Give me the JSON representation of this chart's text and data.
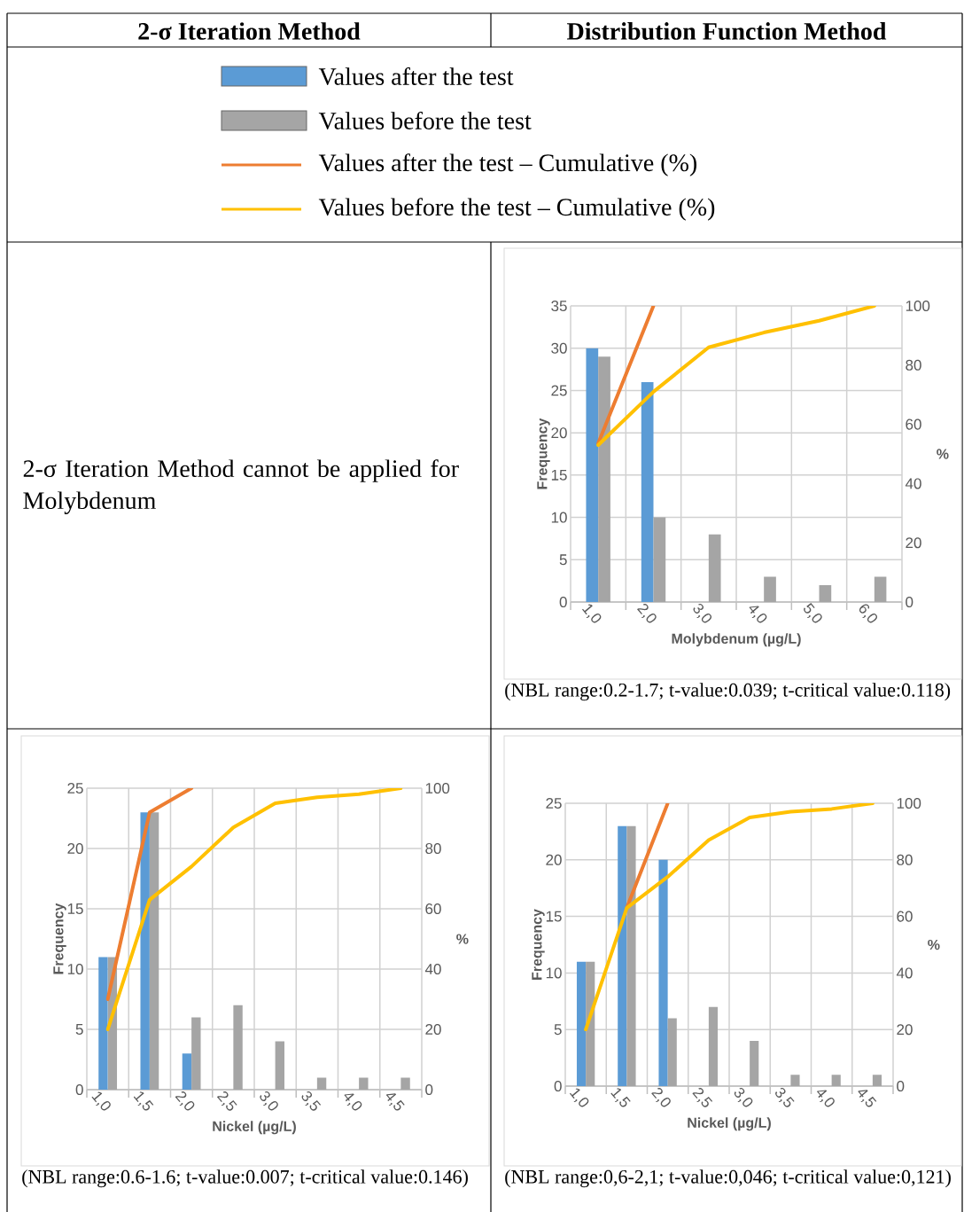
{
  "chart_data": [
    {
      "type": "other",
      "title": "2-σ Iteration Method",
      "annotations": [
        "2-σ Iteration Method cannot be applied for Molybdenum"
      ]
    },
    {
      "type": "bar",
      "title": "Distribution Function Method",
      "xlabel": "Molybdenum (µg/L)",
      "ylabel": "Frequency",
      "y2label": "%",
      "categories": [
        "1,0",
        "2,0",
        "3,0",
        "4,0",
        "5,0",
        "6,0"
      ],
      "series": [
        {
          "name": "Values after the test",
          "color": "#5b9bd5",
          "values": [
            30,
            26,
            0,
            0,
            0,
            0
          ]
        },
        {
          "name": "Values before the test",
          "color": "#a5a5a5",
          "values": [
            29,
            10,
            8,
            3,
            2,
            3
          ]
        },
        {
          "name": "Values after the test – Cumulative (%)",
          "type": "line",
          "axis": "y2",
          "color": "#ed7d31",
          "values": [
            53.6,
            100,
            null,
            null,
            null,
            null
          ]
        },
        {
          "name": "Values before the test – Cumulative (%)",
          "type": "line",
          "axis": "y2",
          "color": "#ffc000",
          "values": [
            53,
            71,
            86,
            91,
            95,
            100
          ]
        }
      ],
      "ylim": [
        0,
        35
      ],
      "yticks": [
        0,
        5,
        10,
        15,
        20,
        25,
        30,
        35
      ],
      "y2lim": [
        0,
        100
      ],
      "y2ticks": [
        0,
        20,
        40,
        60,
        80,
        100
      ],
      "grid": true,
      "legend": "top",
      "annotations": [
        "(NBL range:0.2-1.7; t-value:0.039; t-critical value:0.118)"
      ]
    },
    {
      "type": "bar",
      "xlabel": "Nickel (µg/L)",
      "ylabel": "Frequency",
      "y2label": "%",
      "categories": [
        "1,0",
        "1,5",
        "2,0",
        "2,5",
        "3,0",
        "3,5",
        "4,0",
        "4,5"
      ],
      "series": [
        {
          "color": "#5b9bd5",
          "values": [
            11,
            23,
            3,
            0,
            0,
            0,
            0,
            0
          ]
        },
        {
          "color": "#a5a5a5",
          "values": [
            11,
            23,
            6,
            7,
            4,
            1,
            1,
            1
          ]
        },
        {
          "type": "line",
          "axis": "y2",
          "color": "#ed7d31",
          "values": [
            30,
            92,
            100,
            null,
            null,
            null,
            null,
            null
          ]
        },
        {
          "type": "line",
          "axis": "y2",
          "color": "#ffc000",
          "values": [
            20,
            63,
            74,
            87,
            95,
            97,
            98,
            100
          ]
        }
      ],
      "ylim": [
        0,
        25
      ],
      "yticks": [
        0,
        5,
        10,
        15,
        20,
        25
      ],
      "y2lim": [
        0,
        100
      ],
      "y2ticks": [
        0,
        20,
        40,
        60,
        80,
        100
      ],
      "grid": true,
      "annotations": [
        "(NBL range:0.6-1.6; t-value:0.007; t-critical value:0.146)"
      ]
    },
    {
      "type": "bar",
      "xlabel": "Nickel (µg/L)",
      "ylabel": "Frequency",
      "y2label": "%",
      "categories": [
        "1,0",
        "1,5",
        "2,0",
        "2,5",
        "3,0",
        "3,5",
        "4,0",
        "4,5"
      ],
      "series": [
        {
          "color": "#5b9bd5",
          "values": [
            11,
            23,
            20,
            0,
            0,
            0,
            0,
            0
          ]
        },
        {
          "color": "#a5a5a5",
          "values": [
            11,
            23,
            6,
            7,
            4,
            1,
            1,
            1
          ]
        },
        {
          "type": "line",
          "axis": "y2",
          "color": "#ed7d31",
          "values": [
            null,
            63,
            100,
            null,
            null,
            null,
            null,
            null
          ]
        },
        {
          "type": "line",
          "axis": "y2",
          "color": "#ffc000",
          "values": [
            20,
            63,
            74,
            87,
            95,
            97,
            98,
            100
          ]
        }
      ],
      "ylim": [
        0,
        25
      ],
      "yticks": [
        0,
        5,
        10,
        15,
        20,
        25
      ],
      "y2lim": [
        0,
        100
      ],
      "y2ticks": [
        0,
        20,
        40,
        60,
        80,
        100
      ],
      "grid": true,
      "annotations": [
        "(NBL range:0,6-2,1; t-value:0,046; t-critical value:0,121)"
      ]
    }
  ]
}
